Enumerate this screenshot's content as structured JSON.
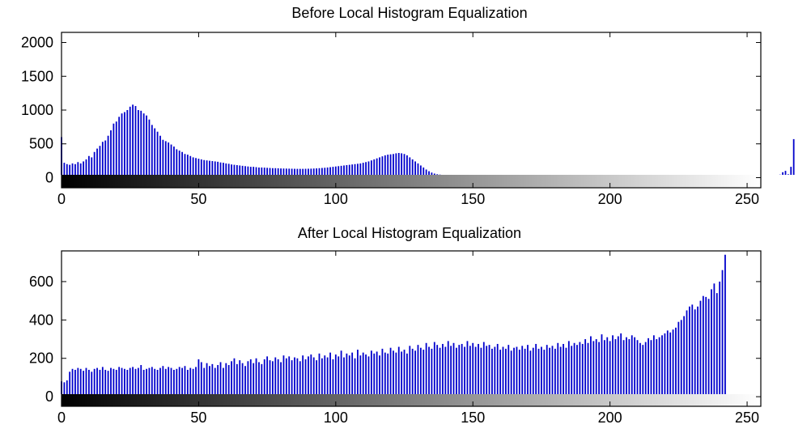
{
  "chart_data": [
    {
      "type": "bar",
      "title": "Before Local Histogram Equalization",
      "xlabel": "",
      "ylabel": "",
      "xlim": [
        0,
        255
      ],
      "ylim": [
        -150,
        2150
      ],
      "xticks": [
        0,
        50,
        100,
        150,
        200,
        250
      ],
      "yticks": [
        0,
        500,
        1000,
        1500,
        2000
      ],
      "bar_color": "#0000cc",
      "grid": false,
      "colorbar": "grayscale 0-255 along x-axis",
      "series": [
        {
          "values": [
            600,
            220,
            200,
            190,
            210,
            200,
            230,
            210,
            240,
            270,
            320,
            300,
            380,
            430,
            470,
            530,
            550,
            620,
            700,
            800,
            830,
            900,
            950,
            970,
            1000,
            1050,
            1080,
            1060,
            1000,
            990,
            950,
            920,
            860,
            780,
            730,
            680,
            620,
            560,
            540,
            520,
            490,
            460,
            420,
            400,
            380,
            350,
            340,
            320,
            300,
            290,
            280,
            270,
            260,
            255,
            250,
            245,
            240,
            235,
            225,
            220,
            210,
            205,
            195,
            190,
            185,
            180,
            175,
            170,
            165,
            160,
            160,
            155,
            150,
            150,
            148,
            145,
            143,
            140,
            140,
            138,
            136,
            135,
            134,
            133,
            132,
            131,
            130,
            130,
            130,
            131,
            132,
            133,
            135,
            137,
            140,
            143,
            146,
            150,
            155,
            160,
            165,
            170,
            175,
            180,
            185,
            190,
            195,
            200,
            205,
            210,
            220,
            230,
            240,
            255,
            270,
            285,
            300,
            315,
            330,
            340,
            345,
            350,
            360,
            365,
            360,
            350,
            330,
            300,
            270,
            240,
            210,
            180,
            150,
            120,
            95,
            75,
            60,
            50,
            45,
            40,
            36,
            33,
            30,
            28,
            26,
            24,
            22,
            20,
            19,
            18,
            18,
            17,
            17,
            16,
            16,
            15,
            15,
            15,
            15,
            15,
            15,
            15,
            15,
            15,
            15,
            14,
            14,
            14,
            14,
            14,
            14,
            14,
            14,
            14,
            14,
            14,
            14,
            14,
            14,
            14,
            14,
            14,
            14,
            14,
            14,
            14,
            14,
            14,
            14,
            14,
            14,
            14,
            14,
            14,
            14,
            14,
            14,
            14,
            14,
            14,
            14,
            14,
            14,
            14,
            14,
            14,
            14,
            14,
            14,
            14,
            14,
            14,
            14,
            14,
            14,
            14,
            14,
            14,
            14,
            14,
            14,
            14,
            14,
            14,
            14,
            14,
            14,
            14,
            14,
            14,
            14,
            14,
            14,
            14,
            14,
            14,
            14,
            14,
            14,
            14,
            14,
            14,
            14,
            14,
            14,
            14,
            14,
            14,
            14,
            14,
            14,
            15,
            15,
            15,
            16,
            16,
            17,
            18,
            20,
            22,
            25,
            30,
            45,
            80,
            100,
            50,
            160,
            570
          ]
        }
      ]
    },
    {
      "type": "bar",
      "title": "After Local Histogram Equalization",
      "xlabel": "",
      "ylabel": "",
      "xlim": [
        0,
        255
      ],
      "ylim": [
        -50,
        760
      ],
      "xticks": [
        0,
        50,
        100,
        150,
        200,
        250
      ],
      "yticks": [
        0,
        200,
        400,
        600
      ],
      "bar_color": "#0000cc",
      "grid": false,
      "colorbar": "grayscale 0-255 along x-axis",
      "series": [
        {
          "values": [
            80,
            75,
            85,
            130,
            145,
            140,
            150,
            145,
            135,
            150,
            140,
            130,
            145,
            150,
            140,
            155,
            140,
            135,
            150,
            145,
            140,
            155,
            150,
            145,
            140,
            150,
            155,
            145,
            150,
            165,
            140,
            145,
            150,
            155,
            145,
            140,
            150,
            160,
            145,
            155,
            150,
            140,
            145,
            155,
            150,
            160,
            140,
            150,
            145,
            155,
            195,
            180,
            150,
            175,
            160,
            170,
            150,
            165,
            180,
            150,
            175,
            165,
            185,
            200,
            170,
            190,
            175,
            160,
            185,
            195,
            175,
            200,
            180,
            170,
            195,
            210,
            190,
            185,
            205,
            195,
            180,
            215,
            200,
            210,
            190,
            205,
            200,
            185,
            215,
            195,
            210,
            220,
            205,
            190,
            225,
            200,
            215,
            205,
            230,
            195,
            220,
            210,
            240,
            205,
            225,
            215,
            230,
            200,
            245,
            215,
            230,
            220,
            210,
            240,
            225,
            235,
            215,
            250,
            230,
            225,
            255,
            240,
            230,
            260,
            235,
            245,
            225,
            265,
            250,
            240,
            270,
            255,
            245,
            280,
            260,
            250,
            285,
            270,
            255,
            275,
            260,
            290,
            265,
            280,
            255,
            270,
            275,
            260,
            290,
            265,
            280,
            260,
            275,
            255,
            285,
            265,
            270,
            250,
            260,
            275,
            245,
            260,
            250,
            270,
            240,
            255,
            260,
            245,
            265,
            250,
            270,
            240,
            255,
            275,
            250,
            260,
            245,
            270,
            255,
            265,
            250,
            280,
            260,
            275,
            255,
            290,
            265,
            280,
            270,
            285,
            275,
            300,
            280,
            315,
            290,
            300,
            285,
            325,
            295,
            310,
            290,
            320,
            300,
            315,
            330,
            295,
            310,
            300,
            320,
            310,
            295,
            280,
            270,
            285,
            305,
            295,
            320,
            300,
            310,
            320,
            330,
            345,
            335,
            350,
            360,
            390,
            400,
            420,
            450,
            470,
            480,
            455,
            470,
            500,
            525,
            520,
            510,
            560,
            590,
            540,
            600,
            660,
            740
          ]
        }
      ]
    }
  ]
}
